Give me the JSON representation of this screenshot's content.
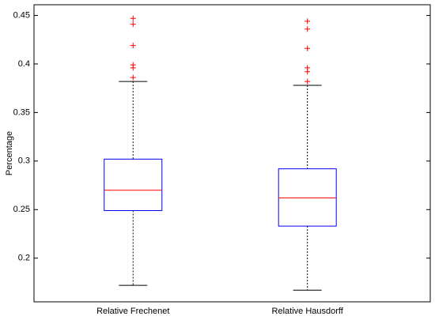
{
  "chart_data": {
    "type": "box",
    "ylabel": "Percentage",
    "categories": [
      "Relative Frechenet",
      "Relative Hausdorff"
    ],
    "boxes": [
      {
        "min": 0.172,
        "q1": 0.249,
        "median": 0.27,
        "q3": 0.302,
        "max": 0.382,
        "outliers": [
          0.447,
          0.441,
          0.419,
          0.399,
          0.396,
          0.386
        ]
      },
      {
        "min": 0.167,
        "q1": 0.233,
        "median": 0.262,
        "q3": 0.292,
        "max": 0.378,
        "outliers": [
          0.444,
          0.436,
          0.416,
          0.396,
          0.392,
          0.382
        ]
      }
    ],
    "box_color": "#0000ff",
    "median_color": "#ff0000",
    "outlier_color": "#ff0000",
    "whisker_color": "#000000",
    "ylim": [
      0.155,
      0.461
    ],
    "yticks": [
      0.2,
      0.25,
      0.3,
      0.35,
      0.4,
      0.45
    ]
  }
}
